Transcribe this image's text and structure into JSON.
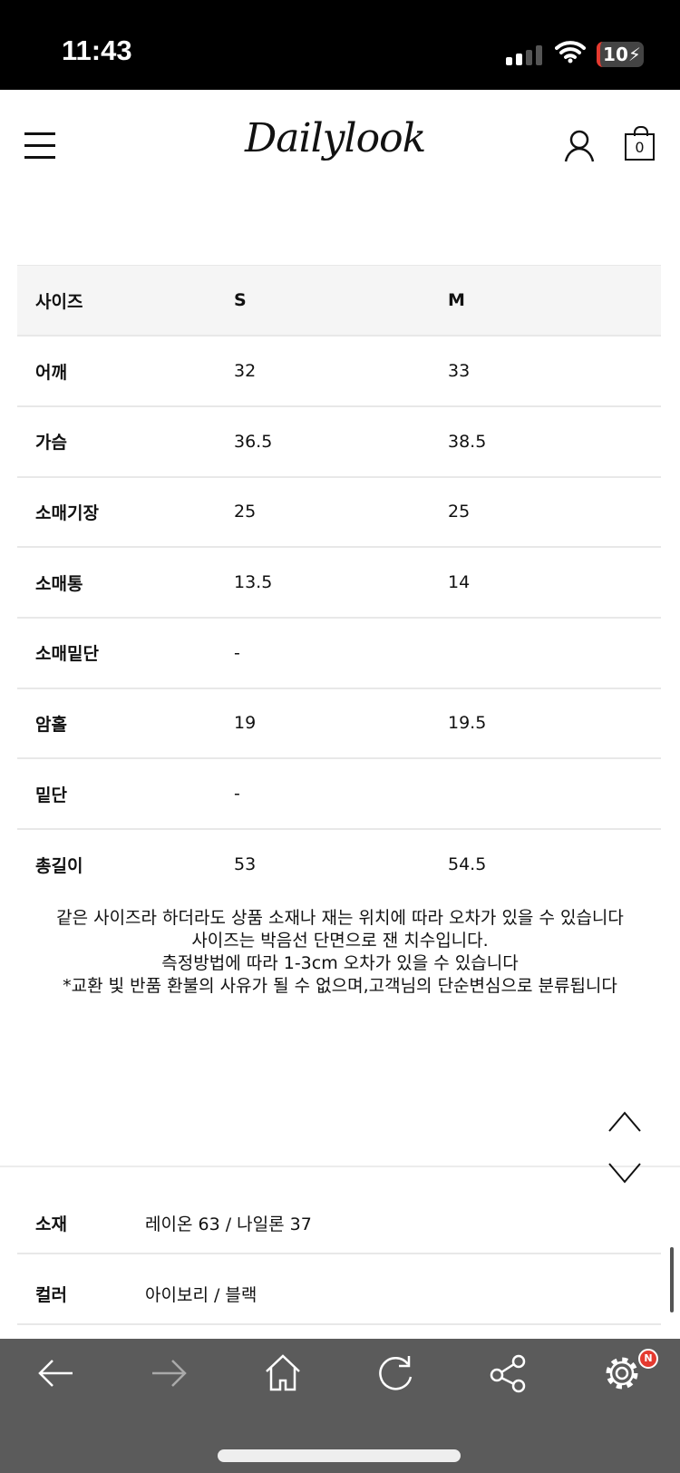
{
  "status_bar": {
    "time": "11:43",
    "battery": "10"
  },
  "header": {
    "logo": "Dailylook",
    "cart_count": "0"
  },
  "size_table": {
    "headers": [
      "사이즈",
      "S",
      "M"
    ],
    "rows": [
      [
        "어깨",
        "32",
        "33"
      ],
      [
        "가슴",
        "36.5",
        "38.5"
      ],
      [
        "소매기장",
        "25",
        "25"
      ],
      [
        "소매통",
        "13.5",
        "14"
      ],
      [
        "소매밑단",
        "-",
        ""
      ],
      [
        "암홀",
        "19",
        "19.5"
      ],
      [
        "밑단",
        "-",
        ""
      ],
      [
        "총길이",
        "53",
        "54.5"
      ]
    ]
  },
  "notes": [
    "같은 사이즈라 하더라도 상품 소재나 재는 위치에 따라 오차가 있을 수 있습니다",
    "사이즈는 박음선 단면으로 잰 치수입니다.",
    "측정방법에 따라 1-3cm 오차가 있을 수 있습니다",
    "*교환 빛 반품 환불의 사유가 될 수 없으며,고객님의 단순변심으로 분류됩니다"
  ],
  "info": {
    "material_label": "소재",
    "material": "레이온 63 / 나일론 37",
    "color_label": "컬러",
    "color": "아이보리 / 블랙"
  },
  "bottom_bar": {
    "badge": "N"
  }
}
